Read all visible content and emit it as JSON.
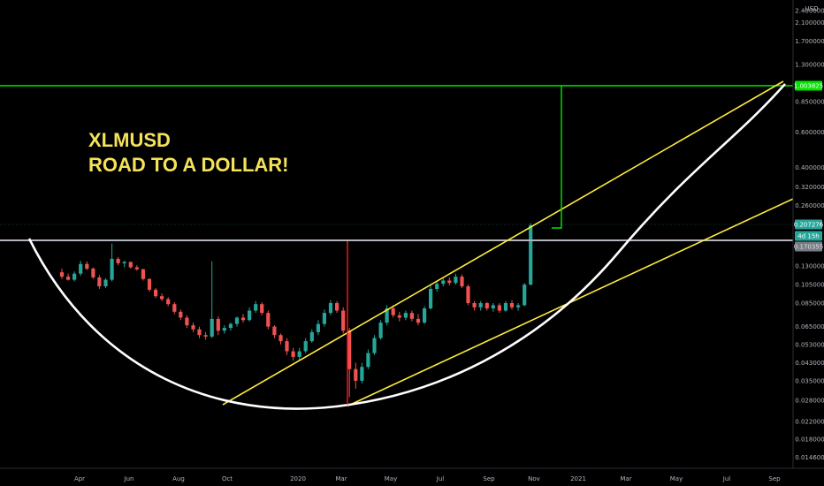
{
  "annotation": {
    "line1": "XLMUSD",
    "line2": "ROAD TO A DOLLAR!"
  },
  "colors": {
    "background": "#000000",
    "up": "#26a69a",
    "down": "#ef5350",
    "trend": "#ffeb3b",
    "curve": "#ffffff",
    "target": "#00e600",
    "resistance": "#b2b5be",
    "marker": "#ff1a1a",
    "annotation": "#f4e25a"
  },
  "chart_data": {
    "type": "candlestick",
    "symbol": "XLMUSD",
    "y_scale": "log",
    "y_unit_label": "USD",
    "y_ticks": [
      "2.400000",
      "2.100000",
      "1.700000",
      "1.300000",
      "0.850000",
      "0.600000",
      "0.400000",
      "0.320000",
      "0.260000",
      "0.130000",
      "0.105000",
      "0.085000",
      "0.065000",
      "0.053000",
      "0.043000",
      "0.035000",
      "0.028000",
      "0.022000",
      "0.018000",
      "0.014600"
    ],
    "x_ticks": [
      "Apr",
      "Jun",
      "Aug",
      "Oct",
      "2020",
      "Mar",
      "May",
      "Jul",
      "Sep",
      "Nov",
      "2021",
      "Mar",
      "May",
      "Jul",
      "Sep"
    ],
    "price_tags": [
      {
        "label": "1.003825",
        "value": 1.004,
        "color": "#00e600"
      },
      {
        "label": "0.207276",
        "value": 0.2073,
        "color": "#26a69a"
      },
      {
        "label": "4d 15h",
        "value": 0.188,
        "color": "#26a69a"
      },
      {
        "label": "0.170355",
        "value": 0.1704,
        "color": "#787b86"
      }
    ],
    "levels": [
      {
        "name": "target",
        "value": 1.004
      },
      {
        "name": "resistance",
        "value": 0.184
      }
    ],
    "candles": [
      {
        "o": 0.121,
        "h": 0.126,
        "l": 0.112,
        "c": 0.115
      },
      {
        "o": 0.115,
        "h": 0.119,
        "l": 0.11,
        "c": 0.111
      },
      {
        "o": 0.111,
        "h": 0.122,
        "l": 0.109,
        "c": 0.119
      },
      {
        "o": 0.119,
        "h": 0.138,
        "l": 0.116,
        "c": 0.133
      },
      {
        "o": 0.133,
        "h": 0.137,
        "l": 0.124,
        "c": 0.126
      },
      {
        "o": 0.126,
        "h": 0.128,
        "l": 0.112,
        "c": 0.114
      },
      {
        "o": 0.114,
        "h": 0.117,
        "l": 0.1,
        "c": 0.103
      },
      {
        "o": 0.103,
        "h": 0.113,
        "l": 0.101,
        "c": 0.111
      },
      {
        "o": 0.111,
        "h": 0.168,
        "l": 0.109,
        "c": 0.141
      },
      {
        "o": 0.141,
        "h": 0.144,
        "l": 0.131,
        "c": 0.134
      },
      {
        "o": 0.134,
        "h": 0.138,
        "l": 0.128,
        "c": 0.136
      },
      {
        "o": 0.136,
        "h": 0.137,
        "l": 0.126,
        "c": 0.128
      },
      {
        "o": 0.128,
        "h": 0.131,
        "l": 0.123,
        "c": 0.125
      },
      {
        "o": 0.125,
        "h": 0.126,
        "l": 0.11,
        "c": 0.112
      },
      {
        "o": 0.112,
        "h": 0.113,
        "l": 0.097,
        "c": 0.099
      },
      {
        "o": 0.099,
        "h": 0.101,
        "l": 0.09,
        "c": 0.092
      },
      {
        "o": 0.092,
        "h": 0.095,
        "l": 0.087,
        "c": 0.089
      },
      {
        "o": 0.089,
        "h": 0.091,
        "l": 0.082,
        "c": 0.084
      },
      {
        "o": 0.084,
        "h": 0.086,
        "l": 0.075,
        "c": 0.077
      },
      {
        "o": 0.077,
        "h": 0.079,
        "l": 0.07,
        "c": 0.072
      },
      {
        "o": 0.072,
        "h": 0.074,
        "l": 0.064,
        "c": 0.066
      },
      {
        "o": 0.066,
        "h": 0.068,
        "l": 0.061,
        "c": 0.063
      },
      {
        "o": 0.063,
        "h": 0.065,
        "l": 0.057,
        "c": 0.059
      },
      {
        "o": 0.059,
        "h": 0.061,
        "l": 0.056,
        "c": 0.058
      },
      {
        "o": 0.058,
        "h": 0.137,
        "l": 0.057,
        "c": 0.071
      },
      {
        "o": 0.071,
        "h": 0.073,
        "l": 0.059,
        "c": 0.062
      },
      {
        "o": 0.062,
        "h": 0.066,
        "l": 0.06,
        "c": 0.064
      },
      {
        "o": 0.064,
        "h": 0.068,
        "l": 0.062,
        "c": 0.067
      },
      {
        "o": 0.067,
        "h": 0.073,
        "l": 0.065,
        "c": 0.072
      },
      {
        "o": 0.072,
        "h": 0.075,
        "l": 0.068,
        "c": 0.07
      },
      {
        "o": 0.07,
        "h": 0.081,
        "l": 0.069,
        "c": 0.078
      },
      {
        "o": 0.078,
        "h": 0.087,
        "l": 0.076,
        "c": 0.084
      },
      {
        "o": 0.084,
        "h": 0.086,
        "l": 0.074,
        "c": 0.076
      },
      {
        "o": 0.076,
        "h": 0.078,
        "l": 0.063,
        "c": 0.065
      },
      {
        "o": 0.065,
        "h": 0.066,
        "l": 0.057,
        "c": 0.059
      },
      {
        "o": 0.059,
        "h": 0.06,
        "l": 0.053,
        "c": 0.055
      },
      {
        "o": 0.055,
        "h": 0.057,
        "l": 0.047,
        "c": 0.049
      },
      {
        "o": 0.049,
        "h": 0.051,
        "l": 0.044,
        "c": 0.046
      },
      {
        "o": 0.046,
        "h": 0.051,
        "l": 0.044,
        "c": 0.049
      },
      {
        "o": 0.049,
        "h": 0.057,
        "l": 0.048,
        "c": 0.055
      },
      {
        "o": 0.055,
        "h": 0.063,
        "l": 0.054,
        "c": 0.061
      },
      {
        "o": 0.061,
        "h": 0.07,
        "l": 0.059,
        "c": 0.067
      },
      {
        "o": 0.067,
        "h": 0.079,
        "l": 0.065,
        "c": 0.076
      },
      {
        "o": 0.076,
        "h": 0.088,
        "l": 0.074,
        "c": 0.085
      },
      {
        "o": 0.085,
        "h": 0.087,
        "l": 0.076,
        "c": 0.078
      },
      {
        "o": 0.078,
        "h": 0.081,
        "l": 0.06,
        "c": 0.062
      },
      {
        "o": 0.062,
        "h": 0.064,
        "l": 0.029,
        "c": 0.04
      },
      {
        "o": 0.04,
        "h": 0.043,
        "l": 0.032,
        "c": 0.035
      },
      {
        "o": 0.035,
        "h": 0.043,
        "l": 0.034,
        "c": 0.041
      },
      {
        "o": 0.041,
        "h": 0.05,
        "l": 0.04,
        "c": 0.048
      },
      {
        "o": 0.048,
        "h": 0.059,
        "l": 0.047,
        "c": 0.057
      },
      {
        "o": 0.057,
        "h": 0.07,
        "l": 0.056,
        "c": 0.068
      },
      {
        "o": 0.068,
        "h": 0.083,
        "l": 0.066,
        "c": 0.08
      },
      {
        "o": 0.08,
        "h": 0.083,
        "l": 0.072,
        "c": 0.074
      },
      {
        "o": 0.074,
        "h": 0.077,
        "l": 0.069,
        "c": 0.072
      },
      {
        "o": 0.072,
        "h": 0.078,
        "l": 0.07,
        "c": 0.076
      },
      {
        "o": 0.076,
        "h": 0.078,
        "l": 0.069,
        "c": 0.071
      },
      {
        "o": 0.071,
        "h": 0.075,
        "l": 0.066,
        "c": 0.068
      },
      {
        "o": 0.068,
        "h": 0.082,
        "l": 0.067,
        "c": 0.08
      },
      {
        "o": 0.08,
        "h": 0.104,
        "l": 0.079,
        "c": 0.1
      },
      {
        "o": 0.1,
        "h": 0.11,
        "l": 0.097,
        "c": 0.106
      },
      {
        "o": 0.106,
        "h": 0.113,
        "l": 0.103,
        "c": 0.11
      },
      {
        "o": 0.11,
        "h": 0.114,
        "l": 0.104,
        "c": 0.107
      },
      {
        "o": 0.107,
        "h": 0.119,
        "l": 0.105,
        "c": 0.115
      },
      {
        "o": 0.115,
        "h": 0.118,
        "l": 0.101,
        "c": 0.103
      },
      {
        "o": 0.103,
        "h": 0.105,
        "l": 0.083,
        "c": 0.085
      },
      {
        "o": 0.085,
        "h": 0.087,
        "l": 0.078,
        "c": 0.081
      },
      {
        "o": 0.081,
        "h": 0.087,
        "l": 0.078,
        "c": 0.085
      },
      {
        "o": 0.085,
        "h": 0.086,
        "l": 0.078,
        "c": 0.08
      },
      {
        "o": 0.08,
        "h": 0.085,
        "l": 0.077,
        "c": 0.083
      },
      {
        "o": 0.083,
        "h": 0.085,
        "l": 0.076,
        "c": 0.078
      },
      {
        "o": 0.078,
        "h": 0.087,
        "l": 0.077,
        "c": 0.085
      },
      {
        "o": 0.085,
        "h": 0.088,
        "l": 0.079,
        "c": 0.081
      },
      {
        "o": 0.081,
        "h": 0.085,
        "l": 0.078,
        "c": 0.083
      },
      {
        "o": 0.083,
        "h": 0.107,
        "l": 0.082,
        "c": 0.105
      },
      {
        "o": 0.105,
        "h": 0.212,
        "l": 0.104,
        "c": 0.207
      }
    ]
  }
}
